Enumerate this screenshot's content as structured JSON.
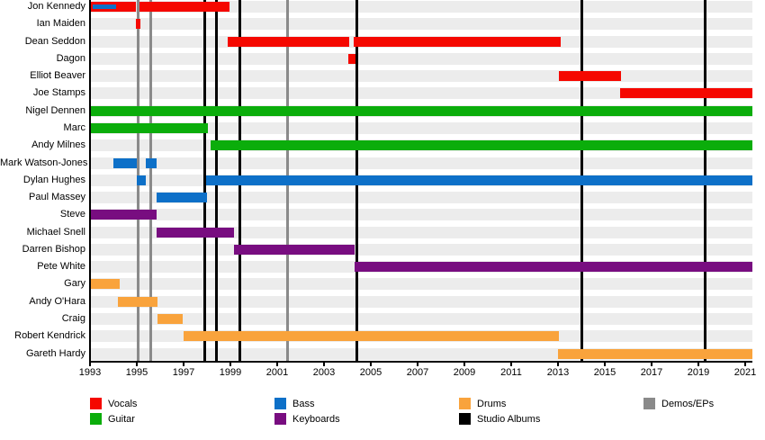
{
  "chart_data": {
    "type": "timeline",
    "description": "Band members timeline (Gantt-style), roles by color, with vertical release markers",
    "x_axis": {
      "min": 1993,
      "max": 2021,
      "tick_years": [
        1993,
        1995,
        1997,
        1999,
        2001,
        2003,
        2005,
        2007,
        2009,
        2011,
        2013,
        2015,
        2017,
        2019,
        2021
      ],
      "plot_end_year": 2021.3,
      "grid": false
    },
    "colors": {
      "vocals": "#f50800",
      "guitar": "#0bad0b",
      "bass": "#0d70c8",
      "keyboards": "#780d80",
      "drums": "#f9a33c",
      "studio_albums": "#000000",
      "demos_eps": "#8a8a8a",
      "row_band": "#ececec"
    },
    "members": [
      {
        "name": "Jon Kennedy",
        "bars": [
          {
            "role": "vocals",
            "start": 1993.0,
            "end": 1994.95
          },
          {
            "role": "vocals",
            "start": 1995.1,
            "end": 1998.95
          },
          {
            "role": "bass",
            "start": 1993.1,
            "end": 1994.1,
            "inner": true
          }
        ]
      },
      {
        "name": "Ian Maiden",
        "bars": [
          {
            "role": "vocals",
            "start": 1994.95,
            "end": 1995.15
          }
        ]
      },
      {
        "name": "Dean Seddon",
        "bars": [
          {
            "role": "vocals",
            "start": 1998.9,
            "end": 2004.08
          },
          {
            "role": "vocals",
            "start": 2004.28,
            "end": 2013.1
          }
        ]
      },
      {
        "name": "Dagon",
        "bars": [
          {
            "role": "vocals",
            "start": 2004.05,
            "end": 2004.35
          }
        ]
      },
      {
        "name": "Elliot Beaver",
        "bars": [
          {
            "role": "vocals",
            "start": 2013.05,
            "end": 2015.7
          }
        ]
      },
      {
        "name": "Joe Stamps",
        "bars": [
          {
            "role": "vocals",
            "start": 2015.65,
            "end": 2021.3
          }
        ]
      },
      {
        "name": "Nigel Dennen",
        "bars": [
          {
            "role": "guitar",
            "start": 1993.0,
            "end": 2021.3
          }
        ]
      },
      {
        "name": "Marc",
        "bars": [
          {
            "role": "guitar",
            "start": 1993.0,
            "end": 1998.05
          }
        ]
      },
      {
        "name": "Andy Milnes",
        "bars": [
          {
            "role": "guitar",
            "start": 1998.15,
            "end": 2021.3
          }
        ]
      },
      {
        "name": "Mark Watson-Jones",
        "bars": [
          {
            "role": "bass",
            "start": 1994.0,
            "end": 1995.0
          },
          {
            "role": "bass",
            "start": 1995.4,
            "end": 1995.85
          }
        ]
      },
      {
        "name": "Dylan Hughes",
        "bars": [
          {
            "role": "bass",
            "start": 1995.0,
            "end": 1995.4
          },
          {
            "role": "bass",
            "start": 1997.95,
            "end": 2021.3
          }
        ]
      },
      {
        "name": "Paul Massey",
        "bars": [
          {
            "role": "bass",
            "start": 1995.85,
            "end": 1998.0
          }
        ]
      },
      {
        "name": "Steve",
        "bars": [
          {
            "role": "keyboards",
            "start": 1993.0,
            "end": 1995.85
          }
        ]
      },
      {
        "name": "Michael Snell",
        "bars": [
          {
            "role": "keyboards",
            "start": 1995.85,
            "end": 1999.15
          }
        ]
      },
      {
        "name": "Darren Bishop",
        "bars": [
          {
            "role": "keyboards",
            "start": 1999.15,
            "end": 2004.3
          }
        ]
      },
      {
        "name": "Pete White",
        "bars": [
          {
            "role": "keyboards",
            "start": 2004.3,
            "end": 2021.3
          }
        ]
      },
      {
        "name": "Gary",
        "bars": [
          {
            "role": "drums",
            "start": 1993.0,
            "end": 1994.25
          }
        ]
      },
      {
        "name": "Andy O'Hara",
        "bars": [
          {
            "role": "drums",
            "start": 1994.2,
            "end": 1995.9
          }
        ]
      },
      {
        "name": "Craig",
        "bars": [
          {
            "role": "drums",
            "start": 1995.9,
            "end": 1996.95
          }
        ]
      },
      {
        "name": "Robert Kendrick",
        "bars": [
          {
            "role": "drums",
            "start": 1997.0,
            "end": 2013.05
          }
        ]
      },
      {
        "name": "Gareth Hardy",
        "bars": [
          {
            "role": "drums",
            "start": 2013.0,
            "end": 2021.3
          }
        ]
      }
    ],
    "events": {
      "studio_albums_years": [
        1997.9,
        1998.4,
        1999.4,
        2004.4,
        2014.0,
        2019.3
      ],
      "demos_eps_years": [
        1995.05,
        1995.6,
        2001.45
      ]
    },
    "legend": {
      "position": "bottom",
      "items": [
        {
          "key": "vocals",
          "label": "Vocals",
          "color": "#f50800"
        },
        {
          "key": "guitar",
          "label": "Guitar",
          "color": "#0bad0b"
        },
        {
          "key": "bass",
          "label": "Bass",
          "color": "#0d70c8"
        },
        {
          "key": "keyboards",
          "label": "Keyboards",
          "color": "#780d80"
        },
        {
          "key": "drums",
          "label": "Drums",
          "color": "#f9a33c"
        },
        {
          "key": "studio-albums",
          "label": "Studio Albums",
          "color": "#000000"
        },
        {
          "key": "demos-eps",
          "label": "Demos/EPs",
          "color": "#8a8a8a"
        }
      ]
    }
  }
}
